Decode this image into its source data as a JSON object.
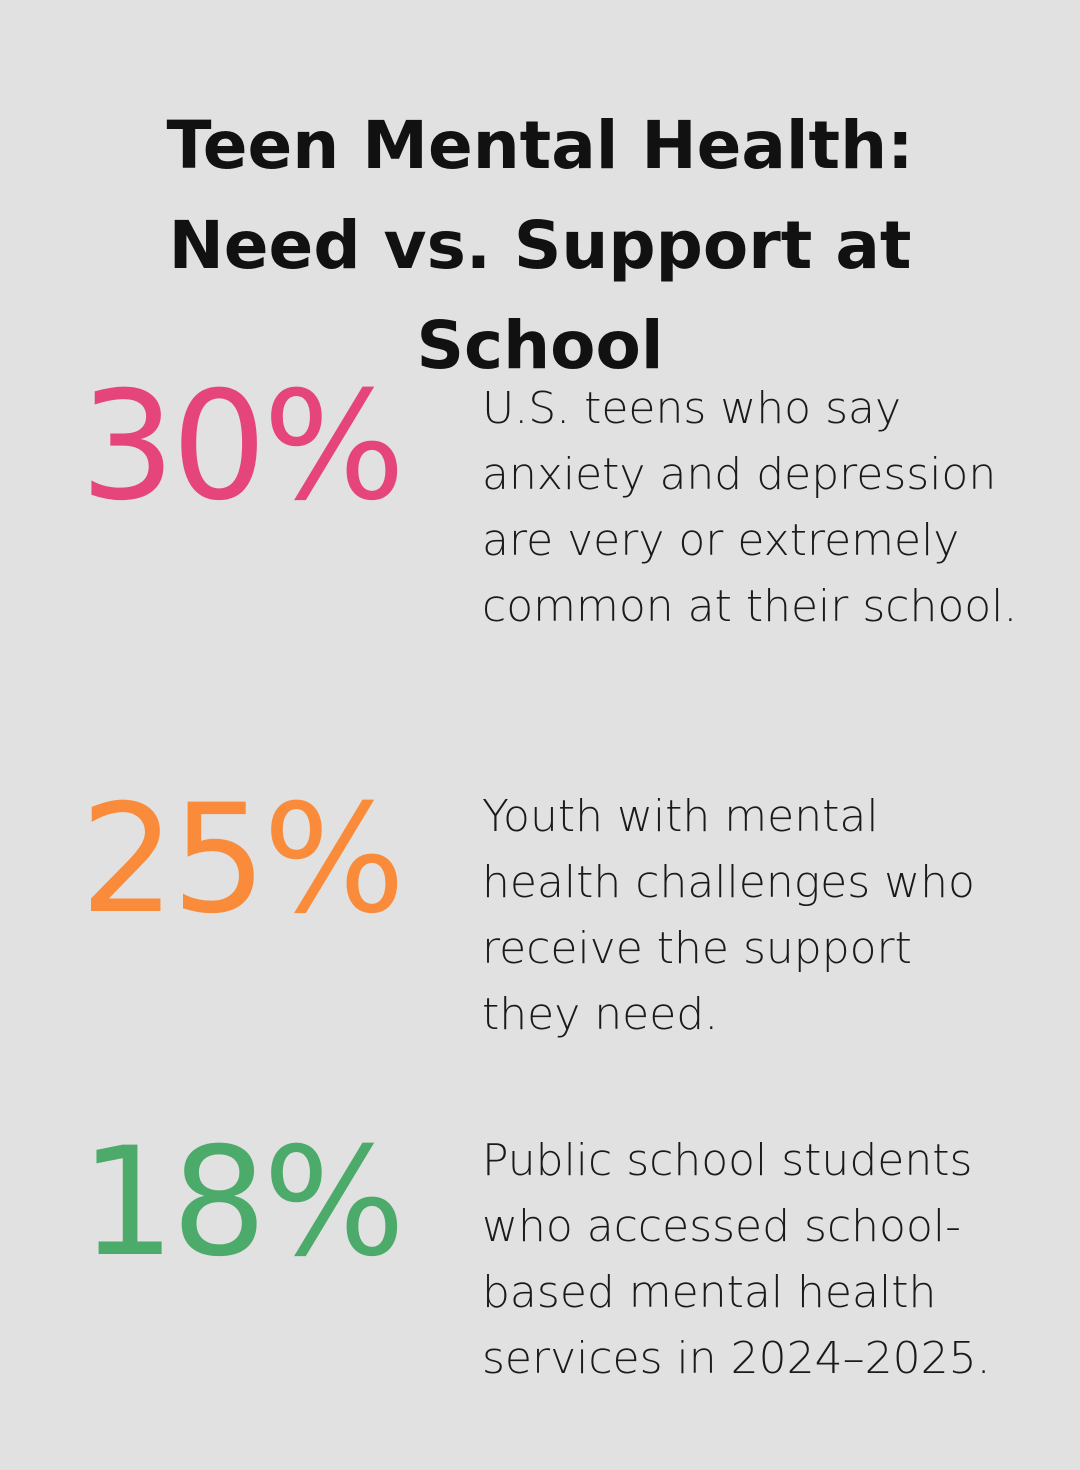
{
  "title": "Teen Mental Health: Need vs. Support at School",
  "stats": [
    {
      "value": "30%",
      "description": "U.S. teens who say anxiety and depression are very or extremely common at their school."
    },
    {
      "value": "25%",
      "description": "Youth with mental health challenges who receive the support they need."
    },
    {
      "value": "18%",
      "description": "Public school students who accessed school-based mental health services in 2024–2025."
    }
  ]
}
